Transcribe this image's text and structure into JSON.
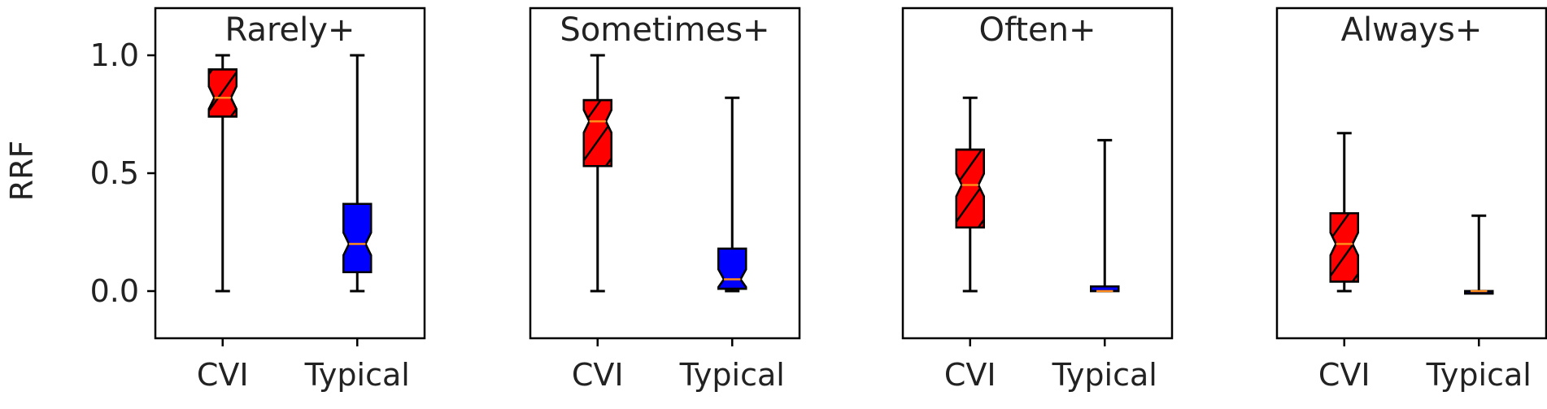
{
  "chart_data": {
    "type": "boxplot",
    "ylabel": "RRF",
    "ylim": [
      -0.2,
      1.2
    ],
    "yticks": [
      "0.0",
      "0.5",
      "1.0"
    ],
    "yticks_values": [
      0.0,
      0.5,
      1.0
    ],
    "categories": [
      "CVI",
      "Typical"
    ],
    "colors": {
      "CVI": "#ff0000",
      "Typical": "#0000ff",
      "median": "#ff8c1a"
    },
    "hatch": {
      "CVI": "diagonal",
      "Typical": "none"
    },
    "notched": true,
    "panels": [
      {
        "title": "Rarely+",
        "boxes": [
          {
            "label": "CVI",
            "min": 0.0,
            "q1": 0.74,
            "median": 0.82,
            "q3": 0.94,
            "max": 1.0
          },
          {
            "label": "Typical",
            "min": 0.0,
            "q1": 0.08,
            "median": 0.2,
            "q3": 0.37,
            "max": 1.0
          }
        ]
      },
      {
        "title": "Sometimes+",
        "boxes": [
          {
            "label": "CVI",
            "min": 0.0,
            "q1": 0.53,
            "median": 0.72,
            "q3": 0.81,
            "max": 1.0
          },
          {
            "label": "Typical",
            "min": 0.0,
            "q1": 0.01,
            "median": 0.05,
            "q3": 0.18,
            "max": 0.82
          }
        ]
      },
      {
        "title": "Often+",
        "boxes": [
          {
            "label": "CVI",
            "min": 0.0,
            "q1": 0.27,
            "median": 0.45,
            "q3": 0.6,
            "max": 0.82
          },
          {
            "label": "Typical",
            "min": 0.0,
            "q1": 0.0,
            "median": 0.0,
            "q3": 0.02,
            "max": 0.64
          }
        ]
      },
      {
        "title": "Always+",
        "boxes": [
          {
            "label": "CVI",
            "min": 0.0,
            "q1": 0.04,
            "median": 0.2,
            "q3": 0.33,
            "max": 0.67
          },
          {
            "label": "Typical",
            "min": 0.0,
            "q1": 0.0,
            "median": 0.0,
            "q3": 0.0,
            "max": 0.32
          }
        ]
      }
    ]
  }
}
